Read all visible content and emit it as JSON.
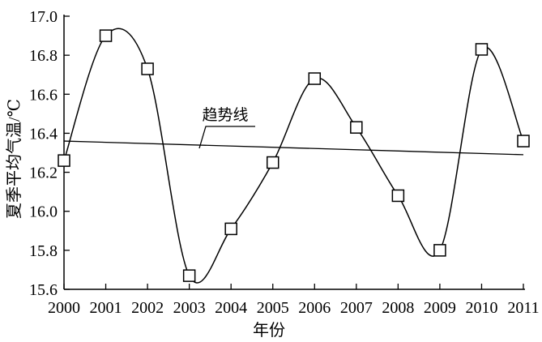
{
  "chart_data": {
    "type": "line",
    "xlabel": "年份",
    "ylabel": "夏季平均气温/℃",
    "x": [
      "2000",
      "2001",
      "2002",
      "2003",
      "2004",
      "2005",
      "2006",
      "2007",
      "2008",
      "2009",
      "2010",
      "2011"
    ],
    "series": [
      {
        "values": [
          16.26,
          16.9,
          16.73,
          15.67,
          15.91,
          16.25,
          16.68,
          16.43,
          16.08,
          15.8,
          16.83,
          16.36
        ],
        "marker": "square",
        "color": "#000000"
      }
    ],
    "trend_line": {
      "label": "趋势线",
      "start": 16.36,
      "end": 16.29
    },
    "ylim": [
      15.6,
      17.0
    ],
    "yticks": [
      "15.6",
      "15.8",
      "16.0",
      "16.2",
      "16.4",
      "16.6",
      "16.8",
      "17.0"
    ],
    "grid": false,
    "legend": "none"
  }
}
